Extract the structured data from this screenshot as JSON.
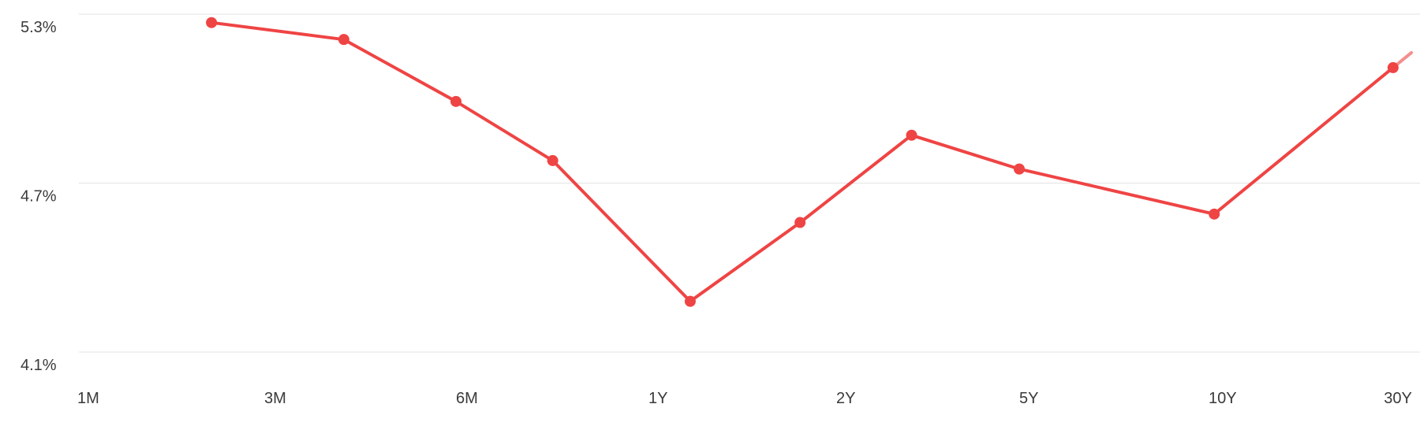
{
  "chart_data": {
    "type": "line",
    "y_ticks": [
      "5.3%",
      "4.7%",
      "4.1%"
    ],
    "y_tick_values": [
      5.3,
      4.7,
      4.1
    ],
    "ylim": [
      4.1,
      5.3
    ],
    "x_tick_labels": [
      "1M",
      "3M",
      "6M",
      "1Y",
      "2Y",
      "5Y",
      "10Y",
      "30Y"
    ],
    "grid": true,
    "series": [
      {
        "color": "#ef4444",
        "points": [
          {
            "x": 2.2,
            "y": 5.27
          },
          {
            "x": 4.0,
            "y": 5.21
          },
          {
            "x": 6.0,
            "y": 4.99
          },
          {
            "x": 8.5,
            "y": 4.78
          },
          {
            "x": 14.0,
            "y": 4.28
          },
          {
            "x": 21.0,
            "y": 4.56
          },
          {
            "x": 35.0,
            "y": 4.87
          },
          {
            "x": 60.0,
            "y": 4.75
          },
          {
            "x": 124.0,
            "y": 4.59
          },
          {
            "x": 350.0,
            "y": 5.11
          }
        ]
      }
    ]
  }
}
